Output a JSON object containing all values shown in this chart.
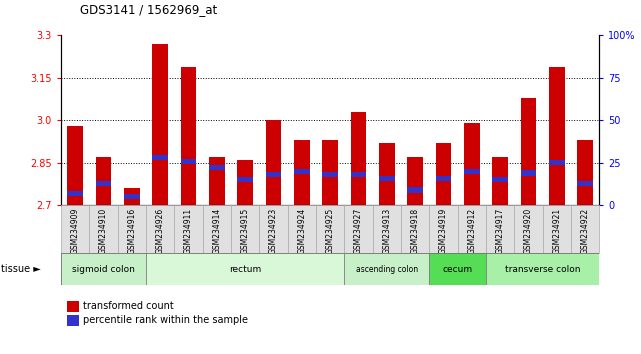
{
  "title": "GDS3141 / 1562969_at",
  "samples": [
    "GSM234909",
    "GSM234910",
    "GSM234916",
    "GSM234926",
    "GSM234911",
    "GSM234914",
    "GSM234915",
    "GSM234923",
    "GSM234924",
    "GSM234925",
    "GSM234927",
    "GSM234913",
    "GSM234918",
    "GSM234919",
    "GSM234912",
    "GSM234917",
    "GSM234920",
    "GSM234921",
    "GSM234922"
  ],
  "transformed_count": [
    2.98,
    2.87,
    2.76,
    3.27,
    3.19,
    2.87,
    2.86,
    3.0,
    2.93,
    2.93,
    3.03,
    2.92,
    2.87,
    2.92,
    2.99,
    2.87,
    3.08,
    3.19,
    2.93
  ],
  "percentile_rank": [
    7,
    13,
    5,
    28,
    26,
    22,
    15,
    18,
    20,
    18,
    18,
    16,
    9,
    16,
    20,
    15,
    19,
    25,
    13
  ],
  "y_min": 2.7,
  "y_max": 3.3,
  "y_ticks_left": [
    2.7,
    2.85,
    3.0,
    3.15,
    3.3
  ],
  "y_ticks_right_vals": [
    0,
    25,
    50,
    75,
    100
  ],
  "y_ticks_right_labels": [
    "0",
    "25",
    "50",
    "75",
    "100%"
  ],
  "grid_lines": [
    2.85,
    3.0,
    3.15
  ],
  "bar_color": "#cc0000",
  "marker_color": "#3333cc",
  "tissue_regions": [
    {
      "label": "sigmoid colon",
      "start": 0,
      "end": 3,
      "color": "#c8f0c8"
    },
    {
      "label": "rectum",
      "start": 3,
      "end": 10,
      "color": "#d8f8d8"
    },
    {
      "label": "ascending colon",
      "start": 10,
      "end": 13,
      "color": "#c8f0c8"
    },
    {
      "label": "cecum",
      "start": 13,
      "end": 15,
      "color": "#55dd55"
    },
    {
      "label": "transverse colon",
      "start": 15,
      "end": 19,
      "color": "#a8f0a8"
    }
  ],
  "legend_red": "transformed count",
  "legend_blue": "percentile rank within the sample",
  "tissue_label": "tissue"
}
